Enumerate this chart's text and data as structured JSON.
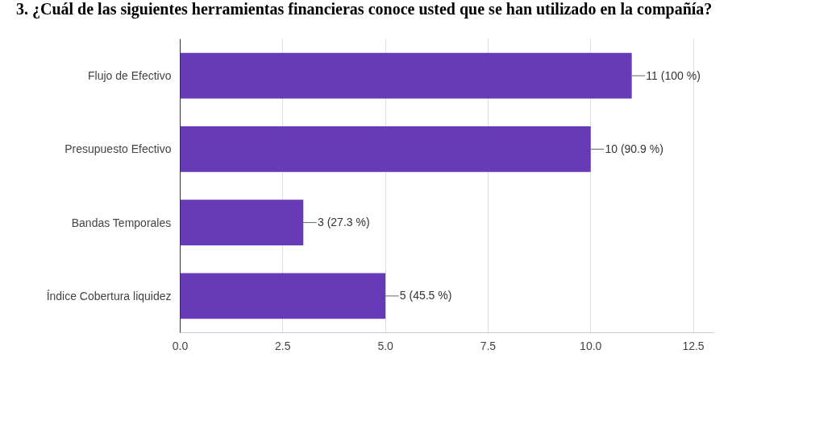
{
  "chart_data": {
    "type": "bar",
    "orientation": "horizontal",
    "title": "3. ¿Cuál de las siguientes herramientas financieras conoce usted que se han utilizado en la compañía?",
    "categories": [
      "Flujo de Efectivo",
      "Presupuesto Efectivo",
      "Bandas Temporales",
      "Índice Cobertura liquidez"
    ],
    "values": [
      11,
      10,
      3,
      5
    ],
    "value_labels": [
      "11 (100 %)",
      "10 (90.9 %)",
      "3 (27.3 %)",
      "5 (45.5 %)"
    ],
    "color": "#673ab7",
    "xlim": [
      0,
      13
    ],
    "xticks": [
      {
        "value": 0,
        "label": "0.0"
      },
      {
        "value": 2.5,
        "label": "2.5"
      },
      {
        "value": 5,
        "label": "5.0"
      },
      {
        "value": 7.5,
        "label": "7.5"
      },
      {
        "value": 10,
        "label": "10.0"
      },
      {
        "value": 12.5,
        "label": "12.5"
      }
    ],
    "grid": "x"
  }
}
